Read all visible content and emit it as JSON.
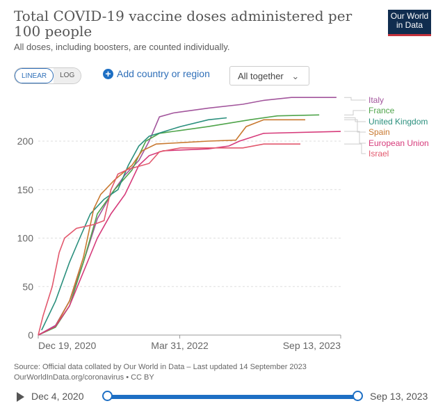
{
  "header": {
    "title": "Total COVID-19 vaccine doses administered per 100 people",
    "subtitle": "All doses, including boosters, are counted individually.",
    "logo": "Our World in Data"
  },
  "controls": {
    "linear": "LINEAR",
    "log": "LOG",
    "scale_selected": "LINEAR",
    "add_label": "Add country or region",
    "add_icon": "plus-circle-icon",
    "select_value": "All together",
    "select_icon": "chevron-down-icon"
  },
  "footer": {
    "source": "Source: Official data collated by Our World in Data – Last updated 14 September 2023",
    "link": "OurWorldInData.org/coronavirus • CC BY"
  },
  "timeline": {
    "start": "Dec 4, 2020",
    "end": "Sep 13, 2023",
    "play_icon": "play-icon"
  },
  "chart_data": {
    "type": "line",
    "title": "Total COVID-19 vaccine doses administered per 100 people",
    "xlim": [
      "2020-12-19",
      "2023-09-13"
    ],
    "ylim": [
      0,
      245
    ],
    "x_ticks": [
      {
        "date": "2020-12-19",
        "label": "Dec 19, 2020"
      },
      {
        "date": "2022-03-31",
        "label": "Mar 31, 2022"
      },
      {
        "date": "2023-09-13",
        "label": "Sep 13, 2023"
      }
    ],
    "y_ticks": [
      0,
      50,
      100,
      150,
      200
    ],
    "grid": true,
    "legend": "right (end labels)",
    "series": [
      {
        "name": "Italy",
        "color": "#a2559c",
        "points": [
          [
            "2020-12-19",
            0
          ],
          [
            "2021-02-14",
            10
          ],
          [
            "2021-04-01",
            35
          ],
          [
            "2021-05-17",
            75
          ],
          [
            "2021-07-02",
            120
          ],
          [
            "2021-08-16",
            145
          ],
          [
            "2021-10-01",
            165
          ],
          [
            "2021-11-16",
            180
          ],
          [
            "2021-12-20",
            200
          ],
          [
            "2022-01-23",
            225
          ],
          [
            "2022-03-10",
            229
          ],
          [
            "2022-07-03",
            234
          ],
          [
            "2022-10-25",
            238
          ],
          [
            "2023-01-02",
            242
          ],
          [
            "2023-04-03",
            245
          ],
          [
            "2023-08-30",
            245
          ]
        ]
      },
      {
        "name": "France",
        "color": "#4fa44a",
        "points": [
          [
            "2020-12-19",
            0
          ],
          [
            "2021-02-14",
            8
          ],
          [
            "2021-04-01",
            30
          ],
          [
            "2021-05-17",
            75
          ],
          [
            "2021-07-02",
            125
          ],
          [
            "2021-08-28",
            150
          ],
          [
            "2021-10-24",
            170
          ],
          [
            "2021-12-09",
            200
          ],
          [
            "2022-01-23",
            208
          ],
          [
            "2022-07-03",
            215
          ],
          [
            "2022-11-17",
            222
          ],
          [
            "2023-02-16",
            226
          ],
          [
            "2023-07-04",
            227
          ]
        ]
      },
      {
        "name": "United Kingdom",
        "color": "#2a8f7d",
        "points": [
          [
            "2020-12-30",
            5
          ],
          [
            "2021-02-14",
            35
          ],
          [
            "2021-04-01",
            75
          ],
          [
            "2021-05-05",
            100
          ],
          [
            "2021-06-09",
            125
          ],
          [
            "2021-07-24",
            140
          ],
          [
            "2021-09-08",
            150
          ],
          [
            "2021-10-12",
            175
          ],
          [
            "2021-11-16",
            195
          ],
          [
            "2021-12-20",
            205
          ],
          [
            "2022-04-02",
            215
          ],
          [
            "2022-07-03",
            222
          ],
          [
            "2022-09-02",
            224
          ]
        ]
      },
      {
        "name": "Spain",
        "color": "#c8782f",
        "points": [
          [
            "2020-12-19",
            0
          ],
          [
            "2021-02-14",
            9
          ],
          [
            "2021-04-01",
            35
          ],
          [
            "2021-05-17",
            80
          ],
          [
            "2021-06-20",
            130
          ],
          [
            "2021-07-13",
            145
          ],
          [
            "2021-08-28",
            160
          ],
          [
            "2021-10-24",
            175
          ],
          [
            "2021-11-27",
            190
          ],
          [
            "2022-01-12",
            197
          ],
          [
            "2022-07-03",
            200
          ],
          [
            "2022-10-02",
            201
          ],
          [
            "2022-11-05",
            215
          ],
          [
            "2023-01-02",
            222
          ],
          [
            "2023-05-19",
            222
          ]
        ]
      },
      {
        "name": "European Union",
        "color": "#d63a7a",
        "points": [
          [
            "2020-12-19",
            0
          ],
          [
            "2021-02-14",
            9
          ],
          [
            "2021-04-01",
            30
          ],
          [
            "2021-05-17",
            65
          ],
          [
            "2021-07-02",
            100
          ],
          [
            "2021-08-16",
            125
          ],
          [
            "2021-10-01",
            145
          ],
          [
            "2021-11-16",
            175
          ],
          [
            "2021-12-20",
            185
          ],
          [
            "2022-02-04",
            190
          ],
          [
            "2022-07-03",
            192
          ],
          [
            "2022-09-09",
            195
          ],
          [
            "2022-10-14",
            200
          ],
          [
            "2023-01-02",
            208
          ],
          [
            "2023-09-13",
            210
          ]
        ]
      },
      {
        "name": "Israel",
        "color": "#e2586d",
        "points": [
          [
            "2020-12-19",
            0
          ],
          [
            "2021-01-04",
            20
          ],
          [
            "2021-02-03",
            50
          ],
          [
            "2021-02-26",
            85
          ],
          [
            "2021-03-16",
            100
          ],
          [
            "2021-04-24",
            110
          ],
          [
            "2021-06-20",
            114
          ],
          [
            "2021-07-24",
            118
          ],
          [
            "2021-08-16",
            150
          ],
          [
            "2021-09-08",
            166
          ],
          [
            "2021-10-12",
            171
          ],
          [
            "2021-12-20",
            177
          ],
          [
            "2022-01-23",
            189
          ],
          [
            "2022-04-02",
            193
          ],
          [
            "2022-10-25",
            193
          ],
          [
            "2023-01-02",
            197
          ],
          [
            "2023-05-03",
            197
          ]
        ]
      }
    ]
  }
}
